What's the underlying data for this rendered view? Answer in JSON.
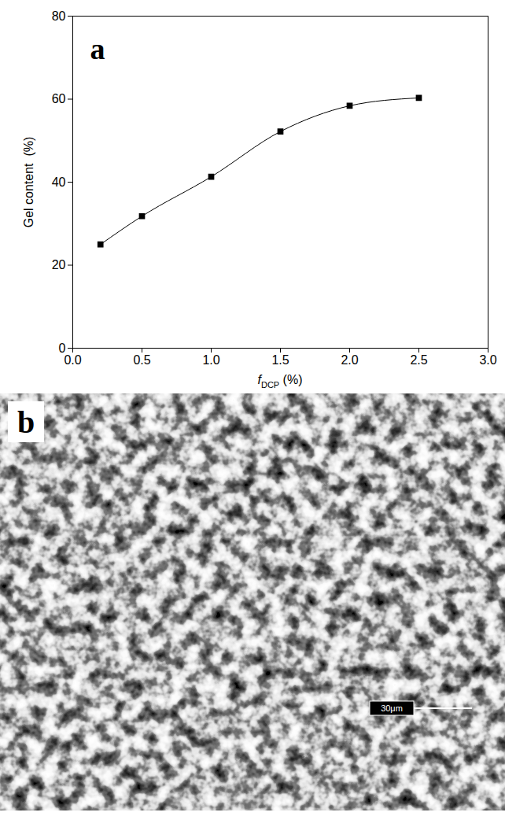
{
  "chart_data": {
    "type": "line",
    "title": "a",
    "x": [
      0.2,
      0.5,
      1.0,
      1.5,
      2.0,
      2.5
    ],
    "values": [
      25.0,
      31.8,
      41.3,
      52.2,
      58.4,
      60.3
    ],
    "color": "#000000",
    "marker": "square",
    "line_style": "smooth",
    "xlim": [
      0,
      3
    ],
    "xticks": [
      {
        "value": 0,
        "label": "0.0"
      },
      {
        "value": 0.5,
        "label": "0.5"
      },
      {
        "value": 1,
        "label": "1.0"
      },
      {
        "value": 1.5,
        "label": "1.5"
      },
      {
        "value": 2,
        "label": "2.0"
      },
      {
        "value": 2.5,
        "label": "2.5"
      },
      {
        "value": 3,
        "label": "3.0"
      }
    ],
    "ylim": [
      0,
      80
    ],
    "yticks": [
      0,
      20,
      40,
      60,
      80
    ],
    "ylabel": "Gel content  (%)",
    "xlabel": [
      {
        "text": "f",
        "style": "italic"
      },
      {
        "text": "DCP",
        "style": "subscript"
      },
      {
        "text": " (%)",
        "style": "normal"
      }
    ],
    "grid": false
  },
  "image": {
    "label": "b",
    "scale_bar": "30μm"
  }
}
